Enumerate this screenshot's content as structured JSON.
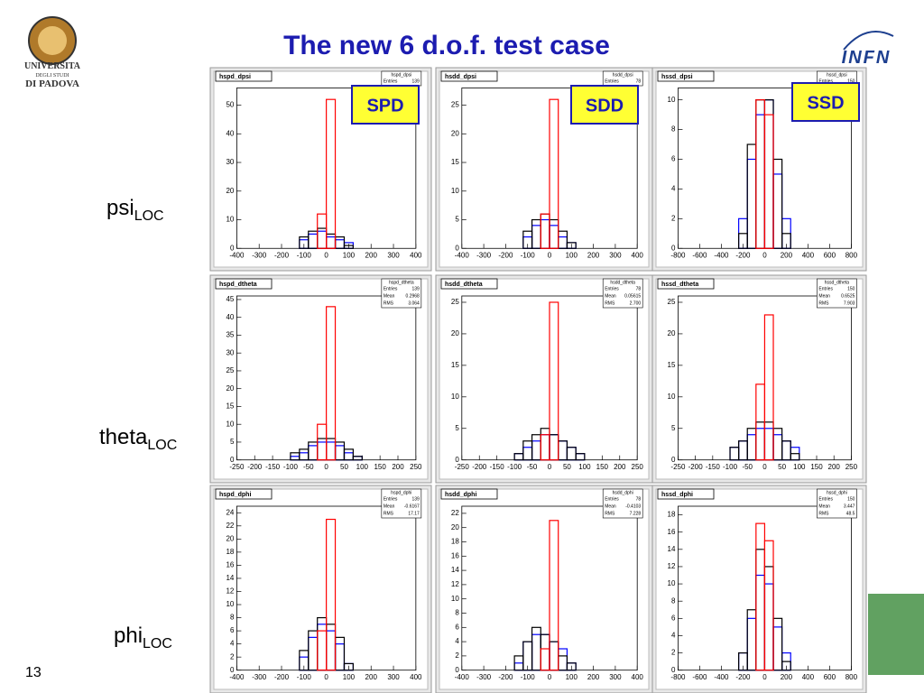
{
  "title": "The new 6 d.o.f. test case",
  "slide_number": "13",
  "logos": {
    "university": [
      "UNIVERSITA",
      "DEGLI STUDI",
      "DI PADOVA"
    ],
    "infn": "INFN"
  },
  "column_labels": [
    "SPD",
    "SDD",
    "SSD"
  ],
  "row_labels": [
    {
      "base": "psi",
      "sub": "LOC"
    },
    {
      "base": "theta",
      "sub": "LOC"
    },
    {
      "base": "phi",
      "sub": "LOC"
    }
  ],
  "chart_data": [
    {
      "type": "histogram",
      "title": "hspd_dpsi",
      "stats": [
        [
          "Entries",
          "139"
        ]
      ],
      "bins": [
        -400,
        -360,
        -320,
        -280,
        -240,
        -200,
        -160,
        -120,
        -80,
        -40,
        0,
        40,
        80,
        120,
        160,
        200,
        240,
        280,
        320,
        360,
        400
      ],
      "xlim": [
        -400,
        400
      ],
      "xticks": [
        -400,
        -300,
        -200,
        -100,
        0,
        100,
        200,
        300,
        400
      ],
      "ylim": [
        0,
        56
      ],
      "yticks": [
        0,
        10,
        20,
        30,
        40,
        50
      ],
      "series": [
        {
          "color": "#0000ff",
          "values": [
            0,
            0,
            0,
            0,
            0,
            0,
            0,
            3,
            5,
            6,
            4,
            3,
            2,
            0,
            0,
            0,
            0,
            0,
            0,
            0
          ]
        },
        {
          "color": "#000000",
          "values": [
            0,
            0,
            0,
            0,
            0,
            0,
            0,
            4,
            6,
            7,
            5,
            4,
            1,
            0,
            0,
            0,
            0,
            0,
            0,
            0
          ]
        },
        {
          "color": "#ff0000",
          "values": [
            0,
            0,
            0,
            0,
            0,
            0,
            0,
            0,
            0,
            12,
            52,
            0,
            0,
            0,
            0,
            0,
            0,
            0,
            0,
            0
          ]
        }
      ]
    },
    {
      "type": "histogram",
      "title": "hsdd_dpsi",
      "stats": [
        [
          "Entries",
          "78"
        ]
      ],
      "bins": [
        -400,
        -360,
        -320,
        -280,
        -240,
        -200,
        -160,
        -120,
        -80,
        -40,
        0,
        40,
        80,
        120,
        160,
        200,
        240,
        280,
        320,
        360,
        400
      ],
      "xlim": [
        -400,
        400
      ],
      "xticks": [
        -400,
        -300,
        -200,
        -100,
        0,
        100,
        200,
        300,
        400
      ],
      "ylim": [
        0,
        28
      ],
      "yticks": [
        0,
        5,
        10,
        15,
        20,
        25
      ],
      "series": [
        {
          "color": "#0000ff",
          "values": [
            0,
            0,
            0,
            0,
            0,
            0,
            0,
            2,
            4,
            5,
            4,
            2,
            1,
            0,
            0,
            0,
            0,
            0,
            0,
            0
          ]
        },
        {
          "color": "#000000",
          "values": [
            0,
            0,
            0,
            0,
            0,
            0,
            0,
            3,
            5,
            6,
            5,
            3,
            1,
            0,
            0,
            0,
            0,
            0,
            0,
            0
          ]
        },
        {
          "color": "#ff0000",
          "values": [
            0,
            0,
            0,
            0,
            0,
            0,
            0,
            0,
            0,
            6,
            26,
            0,
            0,
            0,
            0,
            0,
            0,
            0,
            0,
            0
          ]
        }
      ]
    },
    {
      "type": "histogram",
      "title": "hssd_dpsi",
      "stats": [
        [
          "Entries",
          "150"
        ]
      ],
      "bins": [
        -800,
        -720,
        -640,
        -560,
        -480,
        -400,
        -320,
        -240,
        -160,
        -80,
        0,
        80,
        160,
        240,
        320,
        400,
        480,
        560,
        640,
        720,
        800
      ],
      "xlim": [
        -800,
        800
      ],
      "xticks": [
        -800,
        -600,
        -400,
        -200,
        0,
        200,
        400,
        600,
        800
      ],
      "ylim": [
        0,
        10.8
      ],
      "yticks": [
        0,
        2,
        4,
        6,
        8,
        10
      ],
      "series": [
        {
          "color": "#0000ff",
          "values": [
            0,
            0,
            0,
            0,
            0,
            0,
            0,
            2,
            6,
            9,
            10,
            5,
            2,
            0,
            0,
            0,
            0,
            0,
            0,
            0
          ]
        },
        {
          "color": "#000000",
          "values": [
            0,
            0,
            0,
            0,
            0,
            0,
            0,
            1,
            7,
            10,
            10,
            6,
            1,
            0,
            0,
            0,
            0,
            0,
            0,
            0
          ]
        },
        {
          "color": "#ff0000",
          "values": [
            0,
            0,
            0,
            0,
            0,
            0,
            0,
            0,
            0,
            10,
            9,
            0,
            0,
            0,
            0,
            0,
            0,
            0,
            0,
            0
          ]
        }
      ]
    },
    {
      "type": "histogram",
      "title": "hspd_dtheta",
      "stats": [
        [
          "Entries",
          "139"
        ],
        [
          "Mean",
          "0.2968"
        ],
        [
          "RMS",
          "3.064"
        ]
      ],
      "bins": [
        -250,
        -225,
        -200,
        -175,
        -150,
        -125,
        -100,
        -75,
        -50,
        -25,
        0,
        25,
        50,
        75,
        100,
        125,
        150,
        175,
        200,
        225,
        250
      ],
      "xlim": [
        -250,
        250
      ],
      "xticks": [
        -250,
        -200,
        -150,
        -100,
        -50,
        0,
        50,
        100,
        150,
        200,
        250
      ],
      "ylim": [
        0,
        46
      ],
      "yticks": [
        0,
        5,
        10,
        15,
        20,
        25,
        30,
        35,
        40,
        45
      ],
      "series": [
        {
          "color": "#0000ff",
          "values": [
            0,
            0,
            0,
            0,
            0,
            0,
            1,
            2,
            4,
            5,
            5,
            4,
            2,
            1,
            0,
            0,
            0,
            0,
            0,
            0
          ]
        },
        {
          "color": "#000000",
          "values": [
            0,
            0,
            0,
            0,
            0,
            0,
            2,
            3,
            5,
            6,
            6,
            5,
            3,
            1,
            0,
            0,
            0,
            0,
            0,
            0
          ]
        },
        {
          "color": "#ff0000",
          "values": [
            0,
            0,
            0,
            0,
            0,
            0,
            0,
            0,
            0,
            10,
            43,
            0,
            0,
            0,
            0,
            0,
            0,
            0,
            0,
            0
          ]
        }
      ]
    },
    {
      "type": "histogram",
      "title": "hsdd_dtheta",
      "stats": [
        [
          "Entries",
          "78"
        ],
        [
          "Mean",
          "0.05615"
        ],
        [
          "RMS",
          "2.700"
        ]
      ],
      "bins": [
        -250,
        -225,
        -200,
        -175,
        -150,
        -125,
        -100,
        -75,
        -50,
        -25,
        0,
        25,
        50,
        75,
        100,
        125,
        150,
        175,
        200,
        225,
        250
      ],
      "xlim": [
        -250,
        250
      ],
      "xticks": [
        -250,
        -200,
        -150,
        -100,
        -50,
        0,
        50,
        100,
        150,
        200,
        250
      ],
      "ylim": [
        0,
        26
      ],
      "yticks": [
        0,
        5,
        10,
        15,
        20,
        25
      ],
      "series": [
        {
          "color": "#0000ff",
          "values": [
            0,
            0,
            0,
            0,
            0,
            0,
            1,
            2,
            3,
            4,
            4,
            3,
            2,
            1,
            0,
            0,
            0,
            0,
            0,
            0
          ]
        },
        {
          "color": "#000000",
          "values": [
            0,
            0,
            0,
            0,
            0,
            0,
            1,
            3,
            4,
            5,
            4,
            3,
            2,
            1,
            0,
            0,
            0,
            0,
            0,
            0
          ]
        },
        {
          "color": "#ff0000",
          "values": [
            0,
            0,
            0,
            0,
            0,
            0,
            0,
            0,
            0,
            4,
            25,
            0,
            0,
            0,
            0,
            0,
            0,
            0,
            0,
            0
          ]
        }
      ]
    },
    {
      "type": "histogram",
      "title": "hssd_dtheta",
      "stats": [
        [
          "Entries",
          "150"
        ],
        [
          "Mean",
          "0.6525"
        ],
        [
          "RMS",
          "7.903"
        ]
      ],
      "bins": [
        -250,
        -225,
        -200,
        -175,
        -150,
        -125,
        -100,
        -75,
        -50,
        -25,
        0,
        25,
        50,
        75,
        100,
        125,
        150,
        175,
        200,
        225,
        250
      ],
      "xlim": [
        -250,
        250
      ],
      "xticks": [
        -250,
        -200,
        -150,
        -100,
        -50,
        0,
        50,
        100,
        150,
        200,
        250
      ],
      "ylim": [
        0,
        26
      ],
      "yticks": [
        0,
        5,
        10,
        15,
        20,
        25
      ],
      "series": [
        {
          "color": "#0000ff",
          "values": [
            0,
            0,
            0,
            0,
            0,
            0,
            2,
            3,
            4,
            5,
            5,
            4,
            3,
            2,
            0,
            0,
            0,
            0,
            0,
            0
          ]
        },
        {
          "color": "#000000",
          "values": [
            0,
            0,
            0,
            0,
            0,
            0,
            2,
            3,
            5,
            6,
            6,
            5,
            3,
            1,
            0,
            0,
            0,
            0,
            0,
            0
          ]
        },
        {
          "color": "#ff0000",
          "values": [
            0,
            0,
            0,
            0,
            0,
            0,
            0,
            0,
            0,
            12,
            23,
            0,
            0,
            0,
            0,
            0,
            0,
            0,
            0,
            0
          ]
        }
      ]
    },
    {
      "type": "histogram",
      "title": "hspd_dphi",
      "stats": [
        [
          "Entries",
          "139"
        ],
        [
          "Mean",
          "-0.6167"
        ],
        [
          "RMS",
          "17.17"
        ]
      ],
      "bins": [
        -400,
        -360,
        -320,
        -280,
        -240,
        -200,
        -160,
        -120,
        -80,
        -40,
        0,
        40,
        80,
        120,
        160,
        200,
        240,
        280,
        320,
        360,
        400
      ],
      "xlim": [
        -400,
        400
      ],
      "xticks": [
        -400,
        -300,
        -200,
        -100,
        0,
        100,
        200,
        300,
        400
      ],
      "ylim": [
        0,
        25
      ],
      "yticks": [
        0,
        2,
        4,
        6,
        8,
        10,
        12,
        14,
        16,
        18,
        20,
        22,
        24
      ],
      "series": [
        {
          "color": "#0000ff",
          "values": [
            0,
            0,
            0,
            0,
            0,
            0,
            0,
            2,
            5,
            7,
            6,
            4,
            1,
            0,
            0,
            0,
            0,
            0,
            0,
            0
          ]
        },
        {
          "color": "#000000",
          "values": [
            0,
            0,
            0,
            0,
            0,
            0,
            0,
            3,
            6,
            8,
            7,
            5,
            1,
            0,
            0,
            0,
            0,
            0,
            0,
            0
          ]
        },
        {
          "color": "#ff0000",
          "values": [
            0,
            0,
            0,
            0,
            0,
            0,
            0,
            0,
            0,
            6,
            23,
            0,
            0,
            0,
            0,
            0,
            0,
            0,
            0,
            0
          ]
        }
      ]
    },
    {
      "type": "histogram",
      "title": "hsdd_dphi",
      "stats": [
        [
          "Entries",
          "78"
        ],
        [
          "Mean",
          "-0.4103"
        ],
        [
          "RMS",
          "7.228"
        ]
      ],
      "bins": [
        -400,
        -360,
        -320,
        -280,
        -240,
        -200,
        -160,
        -120,
        -80,
        -40,
        0,
        40,
        80,
        120,
        160,
        200,
        240,
        280,
        320,
        360,
        400
      ],
      "xlim": [
        -400,
        400
      ],
      "xticks": [
        -400,
        -300,
        -200,
        -100,
        0,
        100,
        200,
        300,
        400
      ],
      "ylim": [
        0,
        23
      ],
      "yticks": [
        0,
        2,
        4,
        6,
        8,
        10,
        12,
        14,
        16,
        18,
        20,
        22
      ],
      "series": [
        {
          "color": "#0000ff",
          "values": [
            0,
            0,
            0,
            0,
            0,
            0,
            1,
            4,
            5,
            5,
            4,
            3,
            1,
            0,
            0,
            0,
            0,
            0,
            0,
            0
          ]
        },
        {
          "color": "#000000",
          "values": [
            0,
            0,
            0,
            0,
            0,
            0,
            2,
            4,
            6,
            5,
            4,
            2,
            1,
            0,
            0,
            0,
            0,
            0,
            0,
            0
          ]
        },
        {
          "color": "#ff0000",
          "values": [
            0,
            0,
            0,
            0,
            0,
            0,
            0,
            0,
            0,
            3,
            21,
            0,
            0,
            0,
            0,
            0,
            0,
            0,
            0,
            0
          ]
        }
      ]
    },
    {
      "type": "histogram",
      "title": "hssd_dphi",
      "stats": [
        [
          "Entries",
          "150"
        ],
        [
          "Mean",
          "3.447"
        ],
        [
          "RMS",
          "48.5"
        ]
      ],
      "bins": [
        -800,
        -720,
        -640,
        -560,
        -480,
        -400,
        -320,
        -240,
        -160,
        -80,
        0,
        80,
        160,
        240,
        320,
        400,
        480,
        560,
        640,
        720,
        800
      ],
      "xlim": [
        -800,
        800
      ],
      "xticks": [
        -800,
        -600,
        -400,
        -200,
        0,
        200,
        400,
        600,
        800
      ],
      "ylim": [
        0,
        19
      ],
      "yticks": [
        0,
        2,
        4,
        6,
        8,
        10,
        12,
        14,
        16,
        18
      ],
      "series": [
        {
          "color": "#0000ff",
          "values": [
            0,
            0,
            0,
            0,
            0,
            0,
            0,
            2,
            6,
            11,
            10,
            5,
            2,
            0,
            0,
            0,
            0,
            0,
            0,
            0
          ]
        },
        {
          "color": "#000000",
          "values": [
            0,
            0,
            0,
            0,
            0,
            0,
            0,
            2,
            7,
            14,
            12,
            6,
            1,
            0,
            0,
            0,
            0,
            0,
            0,
            0
          ]
        },
        {
          "color": "#ff0000",
          "values": [
            0,
            0,
            0,
            0,
            0,
            0,
            0,
            0,
            0,
            17,
            15,
            0,
            0,
            0,
            0,
            0,
            0,
            0,
            0,
            0
          ]
        }
      ]
    }
  ]
}
